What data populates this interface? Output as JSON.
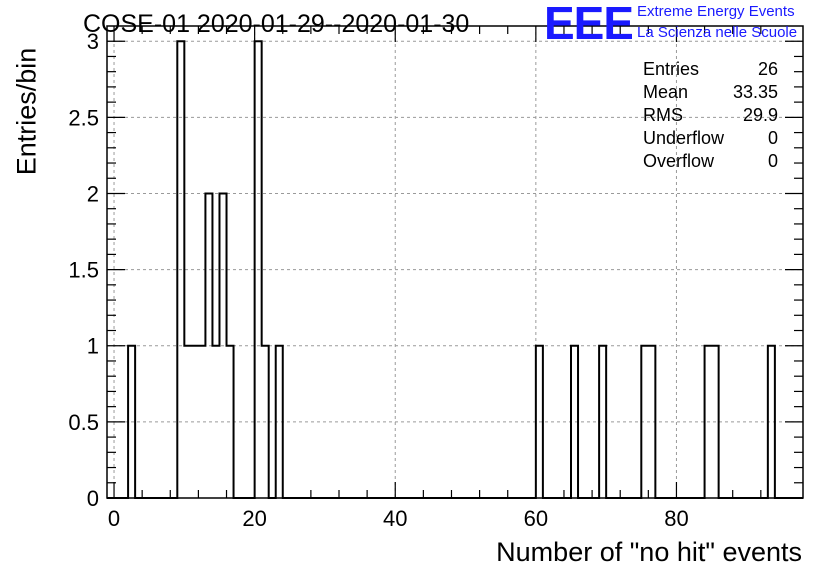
{
  "header": {
    "title": "COSE-01 2020-01-29--2020-01-30",
    "logo_text": "EEE",
    "tagline_1": "Extreme Energy Events",
    "tagline_2": "La Scienza nelle Scuole",
    "logo_color": "#1a1aff"
  },
  "stats": [
    {
      "label": "Entries",
      "value": "26"
    },
    {
      "label": "Mean",
      "value": "33.35"
    },
    {
      "label": "RMS",
      "value": "29.9"
    },
    {
      "label": "Underflow",
      "value": "0"
    },
    {
      "label": "Overflow",
      "value": "0"
    }
  ],
  "chart_data": {
    "type": "bar",
    "title": "COSE-01 2020-01-29--2020-01-30",
    "xlabel": "Number of \"no hit\" events",
    "ylabel": "Entries/bin",
    "xlim": [
      -1,
      98
    ],
    "ylim": [
      0,
      3.1
    ],
    "bin_width": 1,
    "x_ticks": [
      0,
      20,
      40,
      60,
      80
    ],
    "y_ticks": [
      0,
      0.5,
      1,
      1.5,
      2,
      2.5,
      3
    ],
    "y_tick_labels": [
      "0",
      "0.5",
      "1",
      "1.5",
      "2",
      "2.5",
      "3"
    ],
    "grid": true,
    "bins": [
      {
        "x": 2,
        "value": 1
      },
      {
        "x": 9,
        "value": 3
      },
      {
        "x": 10,
        "value": 1
      },
      {
        "x": 11,
        "value": 1
      },
      {
        "x": 12,
        "value": 1
      },
      {
        "x": 13,
        "value": 2
      },
      {
        "x": 14,
        "value": 1
      },
      {
        "x": 15,
        "value": 2
      },
      {
        "x": 16,
        "value": 1
      },
      {
        "x": 20,
        "value": 3
      },
      {
        "x": 21,
        "value": 1
      },
      {
        "x": 23,
        "value": 1
      },
      {
        "x": 60,
        "value": 1
      },
      {
        "x": 65,
        "value": 1
      },
      {
        "x": 69,
        "value": 1
      },
      {
        "x": 75,
        "value": 1
      },
      {
        "x": 76,
        "value": 1
      },
      {
        "x": 84,
        "value": 1
      },
      {
        "x": 85,
        "value": 1
      },
      {
        "x": 93,
        "value": 1
      }
    ],
    "line_color": "#000000",
    "grid_color": "#9a9a9a"
  }
}
